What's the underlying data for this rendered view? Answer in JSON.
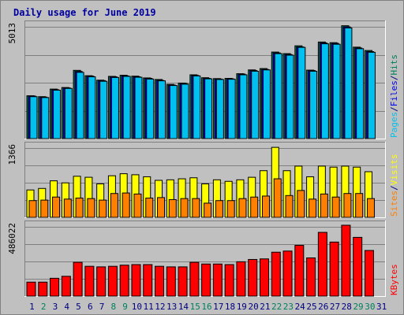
{
  "title": "Daily usage for June 2019",
  "colors": {
    "title": "#0000a0",
    "background": "#c0c0c0",
    "pages": "#00c0f0",
    "files": "#0000f0",
    "hits": "#00805c",
    "visits": "#ffff00",
    "sites": "#ff8000",
    "kbytes": "#ff0000",
    "weekday": "#000080",
    "weekend": "#00805c"
  },
  "chart_data": [
    {
      "type": "bar",
      "panel": "hits-files-pages",
      "categories": [
        "1",
        "2",
        "3",
        "4",
        "5",
        "6",
        "7",
        "8",
        "9",
        "10",
        "11",
        "12",
        "13",
        "14",
        "15",
        "16",
        "17",
        "18",
        "19",
        "20",
        "21",
        "22",
        "23",
        "24",
        "25",
        "26",
        "27",
        "28",
        "29",
        "30",
        "31"
      ],
      "ymax_label": "5013",
      "ymax": 5013,
      "series": [
        {
          "name": "Hits",
          "values": [
            1920,
            1880,
            2220,
            2290,
            3060,
            2820,
            2620,
            2790,
            2840,
            2800,
            2720,
            2650,
            2430,
            2490,
            2860,
            2730,
            2690,
            2700,
            2910,
            3080,
            3140,
            3880,
            3810,
            4160,
            3070,
            4330,
            4300,
            5060,
            4100,
            3950,
            0
          ]
        },
        {
          "name": "Files",
          "values": [
            1910,
            1860,
            2190,
            2270,
            3010,
            2800,
            2600,
            2770,
            2810,
            2770,
            2700,
            2610,
            2400,
            2470,
            2830,
            2700,
            2670,
            2680,
            2890,
            3050,
            3100,
            3840,
            3770,
            4110,
            3050,
            4290,
            4270,
            5010,
            4060,
            3900,
            0
          ]
        },
        {
          "name": "Pages",
          "values": [
            1880,
            1840,
            2170,
            2250,
            2970,
            2770,
            2570,
            2740,
            2790,
            2750,
            2670,
            2590,
            2380,
            2440,
            2810,
            2680,
            2650,
            2660,
            2860,
            3020,
            3080,
            3810,
            3740,
            4090,
            3020,
            4250,
            4230,
            4960,
            4030,
            3870,
            0
          ]
        }
      ],
      "legend": [
        "Pages",
        "/",
        "Files",
        "/",
        "Hits"
      ]
    },
    {
      "type": "bar",
      "panel": "visits-sites",
      "categories": [
        "1",
        "2",
        "3",
        "4",
        "5",
        "6",
        "7",
        "8",
        "9",
        "10",
        "11",
        "12",
        "13",
        "14",
        "15",
        "16",
        "17",
        "18",
        "19",
        "20",
        "21",
        "22",
        "23",
        "24",
        "25",
        "26",
        "27",
        "28",
        "29",
        "30",
        "31"
      ],
      "ymax_label": "1366",
      "ymax": 1366,
      "series": [
        {
          "name": "Visits",
          "values": [
            540,
            570,
            720,
            680,
            810,
            790,
            660,
            820,
            860,
            840,
            800,
            730,
            740,
            760,
            780,
            660,
            740,
            710,
            740,
            790,
            920,
            1380,
            920,
            1010,
            800,
            1010,
            990,
            1010,
            990,
            900,
            0
          ]
        },
        {
          "name": "Sites",
          "values": [
            330,
            340,
            400,
            360,
            380,
            370,
            340,
            470,
            480,
            460,
            380,
            390,
            350,
            370,
            370,
            280,
            330,
            330,
            370,
            400,
            420,
            760,
            430,
            530,
            360,
            460,
            400,
            470,
            470,
            370,
            0
          ]
        }
      ],
      "legend": [
        "Sites",
        "/",
        "Visits"
      ]
    },
    {
      "type": "bar",
      "panel": "kbytes",
      "categories": [
        "1",
        "2",
        "3",
        "4",
        "5",
        "6",
        "7",
        "8",
        "9",
        "10",
        "11",
        "12",
        "13",
        "14",
        "15",
        "16",
        "17",
        "18",
        "19",
        "20",
        "21",
        "22",
        "23",
        "24",
        "25",
        "26",
        "27",
        "28",
        "29",
        "30",
        "31"
      ],
      "ymax_label": "486022",
      "ymax": 486022,
      "series": [
        {
          "name": "KBytes",
          "values": [
            98000,
            98000,
            125000,
            139000,
            237000,
            209000,
            205000,
            209000,
            217000,
            221000,
            221000,
            209000,
            205000,
            205000,
            237000,
            225000,
            225000,
            221000,
            241000,
            257000,
            261000,
            308000,
            316000,
            356000,
            268000,
            447000,
            379000,
            502000,
            412000,
            320000,
            0
          ]
        }
      ],
      "legend": [
        "KBytes"
      ]
    }
  ],
  "x_colors": [
    "weekday",
    "weekend",
    "weekday",
    "weekday",
    "weekday",
    "weekday",
    "weekday",
    "weekend",
    "weekend",
    "weekday",
    "weekday",
    "weekday",
    "weekday",
    "weekday",
    "weekend",
    "weekend",
    "weekday",
    "weekday",
    "weekday",
    "weekday",
    "weekday",
    "weekend",
    "weekend",
    "weekday",
    "weekday",
    "weekday",
    "weekday",
    "weekday",
    "weekend",
    "weekend",
    "weekday"
  ]
}
